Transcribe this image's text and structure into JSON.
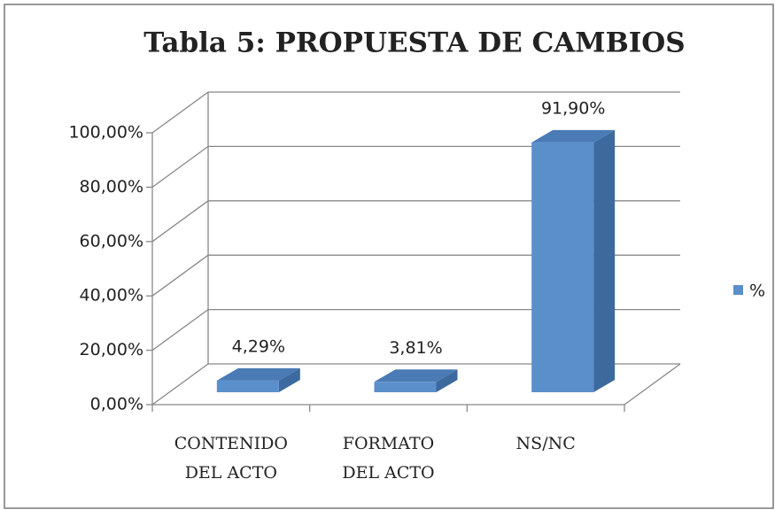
{
  "chart_data": {
    "type": "bar3d",
    "title": "Tabla 5: PROPUESTA DE CAMBIOS",
    "categories": [
      "CONTENIDO DEL ACTO",
      "FORMATO DEL ACTO",
      "NS/NC"
    ],
    "series": [
      {
        "name": "%",
        "color": "#5b8fcc",
        "values": [
          4.29,
          3.81,
          91.9
        ],
        "value_labels": [
          "4,29%",
          "3,81%",
          "91,90%"
        ]
      }
    ],
    "ylim": [
      0,
      100
    ],
    "yticks": [
      {
        "value": 0,
        "label": "0,00%"
      },
      {
        "value": 20,
        "label": "20,00%"
      },
      {
        "value": 40,
        "label": "40,00%"
      },
      {
        "value": 60,
        "label": "60,00%"
      },
      {
        "value": 80,
        "label": "80,00%"
      },
      {
        "value": 100,
        "label": "100,00%"
      }
    ],
    "grid": true,
    "legend": "right"
  }
}
